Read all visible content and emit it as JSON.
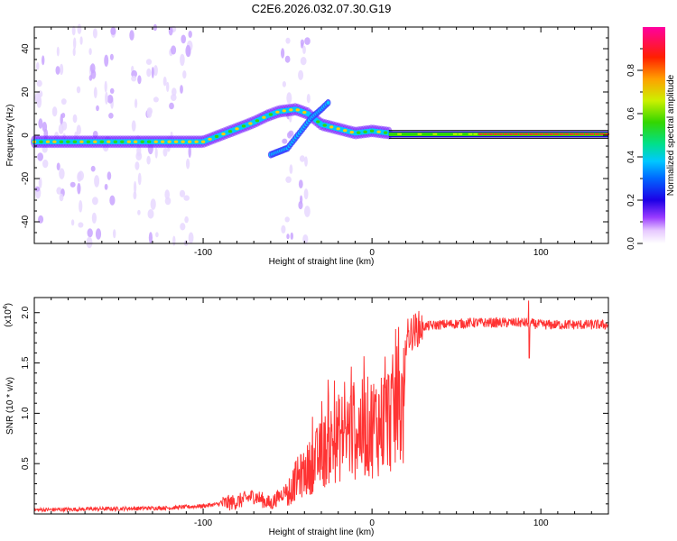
{
  "title": "C2E6.2026.032.07.30.G19",
  "chart_data": [
    {
      "type": "heatmap",
      "name": "spectrogram",
      "xlabel": "Height of straight line (km)",
      "ylabel": "Frequency (Hz)",
      "xlim": [
        -200,
        140
      ],
      "ylim": [
        -50,
        50
      ],
      "xticks": [
        -100,
        0,
        100
      ],
      "xtick_labels": [
        "-100",
        "0",
        "100"
      ],
      "yticks": [
        -40,
        -20,
        0,
        20,
        40
      ],
      "ytick_labels": [
        "-40",
        "-20",
        "0",
        "20",
        "40"
      ],
      "colorbar": {
        "label": "Normalized spectral amplitude",
        "range": [
          0,
          1
        ],
        "ticks": [
          0,
          0.2,
          0.4,
          0.6,
          0.8
        ],
        "tick_labels": [
          "0.0",
          "0.2",
          "0.4",
          "0.6",
          "0.8"
        ]
      },
      "main_trace": [
        [
          -200,
          -3
        ],
        [
          -180,
          -3
        ],
        [
          -160,
          -3
        ],
        [
          -140,
          -3
        ],
        [
          -120,
          -3
        ],
        [
          -100,
          -3
        ],
        [
          -90,
          0
        ],
        [
          -80,
          3
        ],
        [
          -70,
          6
        ],
        [
          -62,
          9
        ],
        [
          -55,
          11
        ],
        [
          -45,
          12
        ],
        [
          -38,
          10
        ],
        [
          -30,
          5
        ],
        [
          -20,
          3
        ],
        [
          -10,
          1
        ],
        [
          0,
          2
        ],
        [
          10,
          1
        ],
        [
          20,
          0.5
        ],
        [
          40,
          0.5
        ],
        [
          60,
          0.5
        ],
        [
          80,
          0.5
        ],
        [
          100,
          0.5
        ],
        [
          120,
          0.5
        ],
        [
          140,
          0.5
        ]
      ],
      "branch_trace": [
        [
          -60,
          -9
        ],
        [
          -50,
          -6
        ],
        [
          -42,
          2
        ],
        [
          -36,
          8
        ],
        [
          -30,
          12
        ],
        [
          -26,
          15
        ]
      ],
      "noise_columns_km": [
        -196,
        -185,
        -175,
        -165,
        -155,
        -140,
        -130,
        -120,
        -110,
        -50,
        -40
      ]
    },
    {
      "type": "line",
      "name": "snr",
      "xlabel": "Height of straight line (km)",
      "ylabel": "SNR (10 * v/v)",
      "scale_label": "(x10",
      "scale_exponent": "4",
      "xlim": [
        -200,
        140
      ],
      "ylim": [
        0,
        2.15
      ],
      "xticks": [
        -100,
        0,
        100
      ],
      "xtick_labels": [
        "-100",
        "0",
        "100"
      ],
      "yticks": [
        0.5,
        1.0,
        1.5,
        2.0
      ],
      "ytick_labels": [
        "0.5",
        "1.0",
        "1.5",
        "2.0"
      ],
      "color": "#ff3333",
      "envelope": [
        [
          -200,
          0.04
        ],
        [
          -160,
          0.05
        ],
        [
          -120,
          0.06
        ],
        [
          -100,
          0.08
        ],
        [
          -80,
          0.12
        ],
        [
          -70,
          0.18
        ],
        [
          -60,
          0.1
        ],
        [
          -50,
          0.25
        ],
        [
          -45,
          0.55
        ],
        [
          -40,
          0.65
        ],
        [
          -35,
          0.8
        ],
        [
          -30,
          0.95
        ],
        [
          -25,
          1.1
        ],
        [
          -20,
          1.2
        ],
        [
          -15,
          1.3
        ],
        [
          -10,
          1.3
        ],
        [
          -5,
          1.35
        ],
        [
          0,
          1.4
        ],
        [
          5,
          1.45
        ],
        [
          10,
          1.55
        ],
        [
          15,
          1.65
        ],
        [
          20,
          1.75
        ],
        [
          25,
          1.82
        ],
        [
          30,
          1.86
        ],
        [
          40,
          1.88
        ],
        [
          60,
          1.9
        ],
        [
          80,
          1.9
        ],
        [
          90,
          1.9
        ],
        [
          100,
          1.88
        ],
        [
          120,
          1.88
        ],
        [
          140,
          1.88
        ]
      ],
      "spike": {
        "x": 93,
        "max": 2.12,
        "min": 1.55
      }
    }
  ]
}
